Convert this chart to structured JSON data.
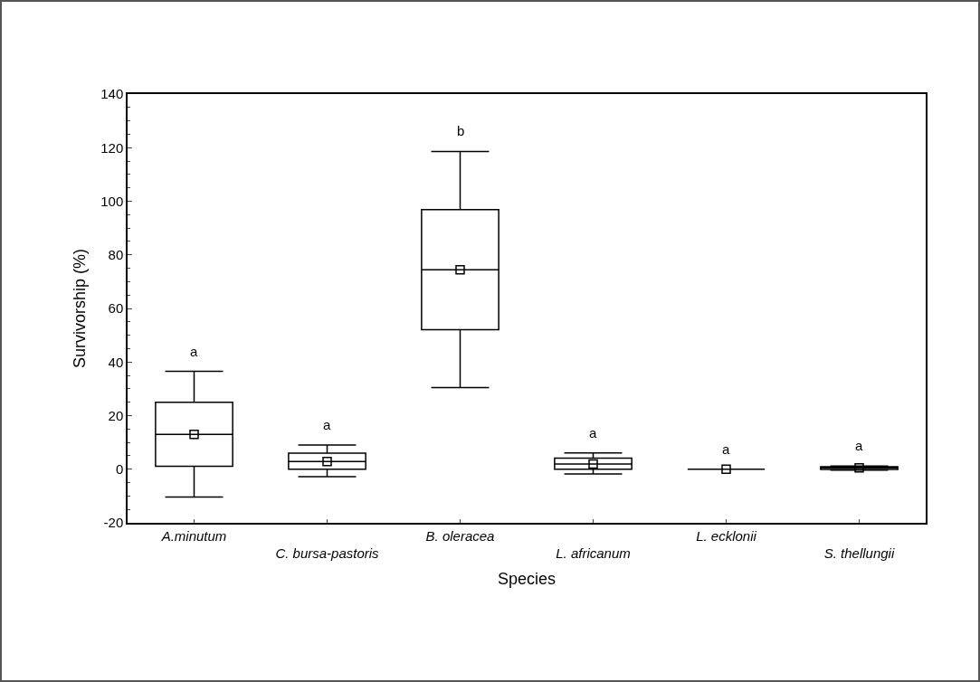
{
  "chart_data": {
    "type": "box",
    "xlabel": "Species",
    "ylabel": "Survivorship (%)",
    "categories": [
      "A.minutum",
      "C. bursa-pastoris",
      "B. oleracea",
      "L. africanum",
      "L. ecklonii",
      "S. thellungii"
    ],
    "boxes": [
      {
        "low": -10.4,
        "q1": 1.1,
        "median": 13,
        "q3": 25,
        "high": 36.5,
        "mean": 13
      },
      {
        "low": -2.8,
        "q1": 0,
        "median": 2.9,
        "q3": 6,
        "high": 9,
        "mean": 2.9
      },
      {
        "low": 30.5,
        "q1": 52.1,
        "median": 74.4,
        "q3": 96.9,
        "high": 118.6,
        "mean": 74.4
      },
      {
        "low": -1.8,
        "q1": 0,
        "median": 1.9,
        "q3": 4.1,
        "high": 6.1,
        "mean": 1.9
      },
      {
        "low": 0,
        "q1": 0,
        "median": 0,
        "q3": 0,
        "high": 0,
        "mean": 0
      },
      {
        "low": -0.3,
        "q1": -0.1,
        "median": 0.5,
        "q3": 0.9,
        "high": 1.2,
        "mean": 0.5
      }
    ],
    "color": "#000000",
    "marker": "square",
    "grid": false,
    "legend": false,
    "ylim": [
      -20,
      140
    ],
    "yticks": [
      -20,
      0,
      20,
      40,
      60,
      80,
      100,
      120,
      140
    ],
    "annotations": [
      "a",
      "a",
      "b",
      "a",
      "a",
      "a"
    ]
  }
}
